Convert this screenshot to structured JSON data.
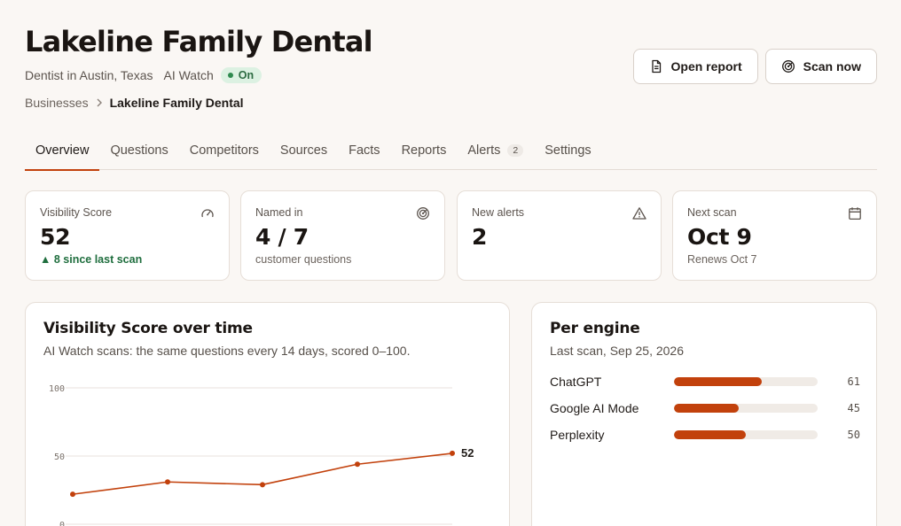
{
  "header": {
    "title": "Lakeline Family Dental",
    "category": "Dentist in Austin, Texas",
    "watch_label": "AI Watch",
    "watch_status": "On"
  },
  "breadcrumb": {
    "parent": "Businesses",
    "current": "Lakeline Family Dental"
  },
  "actions": {
    "open_report": "Open report",
    "scan_now": "Scan now"
  },
  "tabs": [
    {
      "label": "Overview",
      "active": true
    },
    {
      "label": "Questions"
    },
    {
      "label": "Competitors"
    },
    {
      "label": "Sources"
    },
    {
      "label": "Facts"
    },
    {
      "label": "Reports"
    },
    {
      "label": "Alerts",
      "count": "2"
    },
    {
      "label": "Settings"
    }
  ],
  "stats": [
    {
      "label": "Visibility Score",
      "value": "52",
      "sub": "▲ 8 since last scan",
      "icon": "gauge-icon"
    },
    {
      "label": "Named in",
      "value": "4 / 7",
      "sub": "customer questions",
      "icon": "radar-icon"
    },
    {
      "label": "New alerts",
      "value": "2",
      "sub": "",
      "icon": "warning-icon"
    },
    {
      "label": "Next scan",
      "value": "Oct 9",
      "sub": "Renews Oct 7",
      "icon": "calendar-icon"
    }
  ],
  "score_chart": {
    "title": "Visibility Score over time",
    "description": "AI Watch scans: the same questions every 14 days, scored 0–100.",
    "end_label": "52"
  },
  "per_engine": {
    "title": "Per engine",
    "subtitle": "Last scan, Sep 25, 2026",
    "engines": [
      {
        "name": "ChatGPT",
        "score": 61
      },
      {
        "name": "Google AI Mode",
        "score": 45
      },
      {
        "name": "Perplexity",
        "score": 50
      }
    ]
  },
  "colors": {
    "accent": "#c2410c",
    "success": "#2f8a4f",
    "grid": "#e8e2dc"
  },
  "chart_data": {
    "type": "line",
    "x": [
      1,
      2,
      3,
      4,
      5
    ],
    "series": [
      {
        "values": [
          22,
          31,
          29,
          44,
          52
        ]
      }
    ],
    "ylim": [
      0,
      100
    ],
    "yticks": [
      "100",
      "50",
      "0"
    ],
    "grid": true
  }
}
